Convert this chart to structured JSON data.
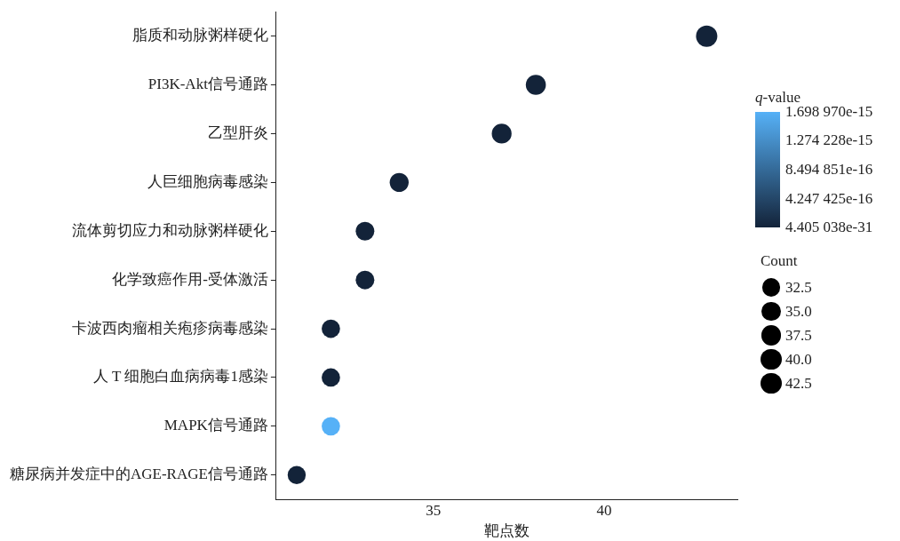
{
  "chart_data": {
    "type": "bubble",
    "orientation": "horizontal",
    "categories": [
      "脂质和动脉粥样硬化",
      "PI3K-Akt信号通路",
      "乙型肝炎",
      "人巨细胞病毒感染",
      "流体剪切应力和动脉粥样硬化",
      "化学致癌作用-受体激活",
      "卡波西肉瘤相关疱疹病毒感染",
      "人 T 细胞白血病病毒1感染",
      "MAPK信号通路",
      "糖尿病并发症中的AGE-RAGE信号通路"
    ],
    "values": [
      43,
      38,
      37,
      34,
      33,
      33,
      32,
      32,
      32,
      31
    ],
    "sizes": [
      43,
      38,
      37,
      34,
      33,
      33,
      32,
      32,
      32,
      31
    ],
    "cvalues": [
      4.405038e-31,
      4.405038e-31,
      4.405038e-31,
      4.405038e-31,
      4.405038e-31,
      4.405038e-31,
      4.405038e-31,
      4.405038e-31,
      1.69897e-15,
      4.405038e-31
    ],
    "size_legend": [
      {
        "value": 32.5,
        "label": "32.5"
      },
      {
        "value": 35,
        "label": "35.0"
      },
      {
        "value": 37.5,
        "label": "37.5"
      },
      {
        "value": 40,
        "label": "40.0"
      },
      {
        "value": 42.5,
        "label": "42.5"
      }
    ],
    "legend_title": "Count",
    "clabel": "q-value",
    "clim": [
      4.405038e-31,
      1.69897e-15
    ],
    "cticks": [
      {
        "value": 4.405038e-31,
        "label": "4.405 038e-31"
      },
      {
        "value": 4.247425e-16,
        "label": "4.247 425e-16"
      },
      {
        "value": 8.494851e-16,
        "label": "8.494 851e-16"
      },
      {
        "value": 1.274228e-15,
        "label": "1.274 228e-15"
      },
      {
        "value": 1.69897e-15,
        "label": "1.698 970e-15"
      }
    ],
    "xlabel": "靶点数",
    "xlim": [
      30.4,
      43.9
    ],
    "xticks": [
      35,
      40
    ],
    "grid": false
  }
}
